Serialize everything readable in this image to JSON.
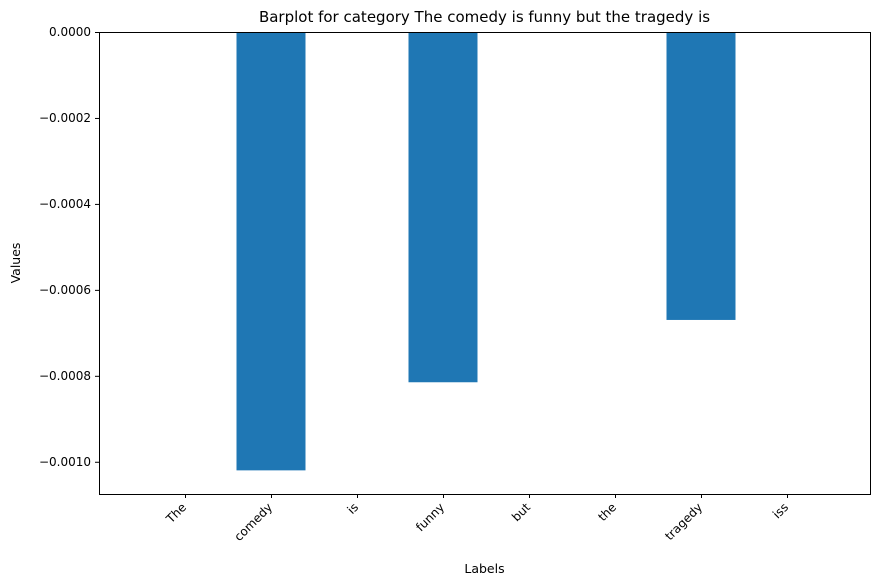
{
  "chart_data": {
    "type": "bar",
    "title": "Barplot for category The comedy is funny but the tragedy is",
    "xlabel": "Labels",
    "ylabel": "Values",
    "categories": [
      "The",
      "comedy",
      "is",
      "funny",
      "but",
      "the",
      "tragedy",
      "iss"
    ],
    "values": [
      0,
      -0.00102,
      0,
      -0.000815,
      0,
      0,
      -0.00067,
      0
    ],
    "ylim": [
      -0.001075,
      0
    ],
    "yticks": [
      {
        "value": 0,
        "label": "0.0000"
      },
      {
        "value": -0.0002,
        "label": "−0.0002"
      },
      {
        "value": -0.0004,
        "label": "−0.0004"
      },
      {
        "value": -0.0006,
        "label": "−0.0006"
      },
      {
        "value": -0.0008,
        "label": "−0.0008"
      },
      {
        "value": -0.001,
        "label": "−0.0010"
      }
    ],
    "bar_color": "#1f77b4",
    "grid": false,
    "legend": false
  }
}
